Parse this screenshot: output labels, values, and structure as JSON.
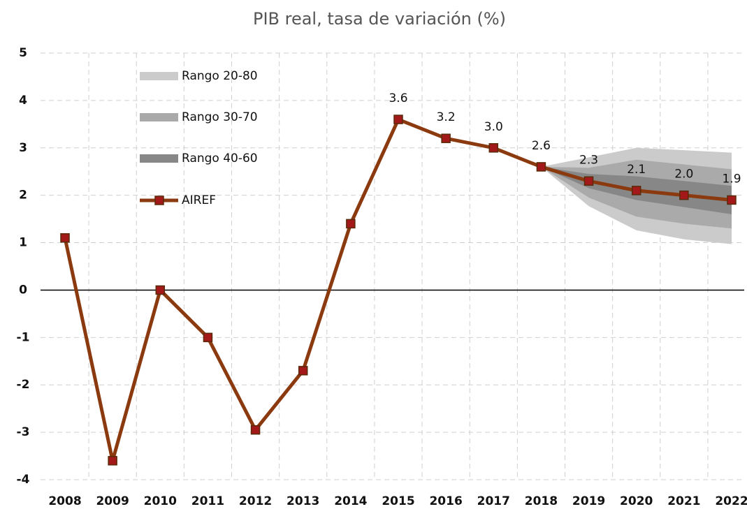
{
  "chart_data": {
    "type": "line",
    "title": "PIB real,  tasa de variación (%)",
    "categories": [
      "2008",
      "2009",
      "2010",
      "2011",
      "2012",
      "2013",
      "2014",
      "2015",
      "2016",
      "2017",
      "2018",
      "2019",
      "2020",
      "2021",
      "2022"
    ],
    "series": [
      {
        "name": "AIREF",
        "color": "#8b3a0f",
        "marker_color": "#a3191a",
        "values": [
          1.1,
          -3.6,
          0.0,
          -1.0,
          -2.95,
          -1.7,
          1.4,
          3.6,
          3.2,
          3.0,
          2.6,
          2.3,
          2.1,
          2.0,
          1.9
        ],
        "value_labels": [
          null,
          null,
          null,
          null,
          null,
          null,
          null,
          "3.6",
          "3.2",
          "3.0",
          "2.6",
          "2.3",
          "2.1",
          "2.0",
          "1.9"
        ]
      }
    ],
    "bands": [
      {
        "name": "Rango 20-80",
        "color": "#cbcbcb",
        "lower": [
          null,
          null,
          null,
          null,
          null,
          null,
          null,
          null,
          null,
          null,
          2.6,
          1.77,
          1.26,
          1.07,
          0.97
        ],
        "upper": [
          null,
          null,
          null,
          null,
          null,
          null,
          null,
          null,
          null,
          null,
          2.6,
          2.8,
          3.0,
          2.95,
          2.9
        ]
      },
      {
        "name": "Rango 30-70",
        "color": "#aaaaaa",
        "lower": [
          null,
          null,
          null,
          null,
          null,
          null,
          null,
          null,
          null,
          null,
          2.6,
          1.95,
          1.55,
          1.4,
          1.3
        ],
        "upper": [
          null,
          null,
          null,
          null,
          null,
          null,
          null,
          null,
          null,
          null,
          2.6,
          2.58,
          2.75,
          2.65,
          2.55
        ]
      },
      {
        "name": "Rango 40-60",
        "color": "#878787",
        "lower": [
          null,
          null,
          null,
          null,
          null,
          null,
          null,
          null,
          null,
          null,
          2.6,
          2.15,
          1.9,
          1.75,
          1.6
        ],
        "upper": [
          null,
          null,
          null,
          null,
          null,
          null,
          null,
          null,
          null,
          null,
          2.6,
          2.45,
          2.4,
          2.3,
          2.2
        ]
      }
    ],
    "ylim": [
      -4,
      5
    ],
    "yticks": [
      -4,
      -3,
      -2,
      -1,
      0,
      1,
      2,
      3,
      4,
      5
    ],
    "grid": true,
    "legend": "upper left"
  }
}
